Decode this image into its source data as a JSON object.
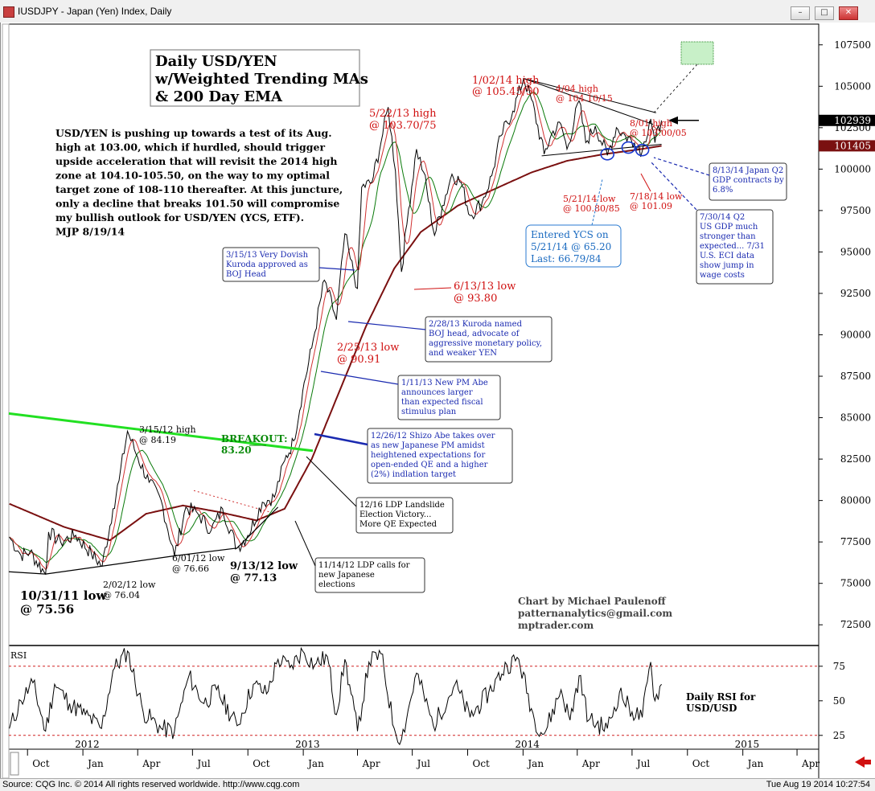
{
  "window": {
    "title": "IUSDJPY - Japan (Yen) Index, Daily",
    "buttons": [
      "minimize",
      "maximize",
      "close"
    ]
  },
  "footer": {
    "source": "Source: CQG Inc. © 2014 All rights reserved worldwide.  http://www.cqg.com",
    "timestamp": "Tue Aug 19 2014 10:27:54"
  },
  "chart_data": [
    {
      "type": "line",
      "ylim": [
        71250,
        108750
      ],
      "y_ticks": [
        "72500",
        "75000",
        "77500",
        "80000",
        "82500",
        "85000",
        "87500",
        "90000",
        "92500",
        "95000",
        "97500",
        "100000",
        "102500",
        "105000",
        "107500"
      ],
      "x_tick_labels": [
        "Oct",
        "Jan",
        "Apr",
        "Jul",
        "Oct",
        "Jan",
        "Apr",
        "Jul",
        "Oct",
        "Jan",
        "Apr",
        "Jul",
        "Oct",
        "Jan",
        "Apr"
      ],
      "x_year_labels": [
        "2012",
        "2013",
        "2014",
        "2015"
      ],
      "price_markers": [
        {
          "label": "102939",
          "value": 102939,
          "color": "#000000"
        },
        {
          "label": "101405",
          "value": 101405,
          "color": "#7a1010"
        }
      ],
      "title_box": [
        "Daily USD/YEN",
        "w/Weighted Trending MAs",
        "& 200 Day EMA"
      ],
      "commentary": [
        "USD/YEN is pushing up towards a test of its Aug.",
        "high at 103.00, which if hurdled, should trigger",
        "upside acceleration that will revisit the 2014 high",
        "zone at 104.10-105.50, on the way to my optimal",
        "target zone of 108-110 thereafter. At this juncture,",
        "only a decline that breaks 101.50 will compromise",
        "my bullish outlook for USD/YEN (YCS, ETF).",
        "MJP 8/19/14"
      ],
      "credit": [
        "Chart by Michael Paulenoff",
        "patternanalytics@gmail.com",
        "mptrader.com"
      ],
      "labels_red": [
        [
          "5/22/13 high",
          "@ 103.70/75"
        ],
        [
          "1/02/14 high",
          "@ 105.45/50"
        ],
        [
          "4/04 high",
          "@ 104.10/15"
        ],
        [
          "8/01 high",
          "@ 103.00/05"
        ],
        [
          "5/21/14 low",
          "@ 100.80/85"
        ],
        [
          "7/18/14 low",
          "@ 101.09"
        ],
        [
          "6/13/13 low",
          "@ 93.80"
        ],
        [
          "2/25/13 low",
          "@ 90.91"
        ]
      ],
      "labels_black": [
        [
          "3/15/12 high",
          "@ 84.19"
        ],
        [
          "2/02/12 low",
          "@ 76.04"
        ],
        [
          "6/01/12 low",
          "@ 76.66"
        ],
        [
          "9/13/12 low",
          "@ 77.13"
        ],
        [
          "10/31/11 low",
          "@ 75.56"
        ]
      ],
      "breakout": [
        "BREAKOUT:",
        "83.20"
      ],
      "notes_blue": [
        [
          "3/15/13 Very Dovish",
          "Kuroda approved as",
          "BOJ Head"
        ],
        [
          "2/28/13 Kuroda named",
          "BOJ head, advocate of",
          "aggressive monetary policy,",
          "and  weaker YEN"
        ],
        [
          "1/11/13 New PM Abe",
          "announces larger",
          "than expected fiscal",
          "stimulus plan"
        ],
        [
          "12/26/12 Shizo Abe takes over",
          "as new Japanese PM amidst",
          "heightened expectations for",
          "open-ended QE and a higher",
          "(2%) indlation target"
        ],
        [
          "8/13/14 Japan Q2",
          "GDP contracts by",
          "6.8%"
        ],
        [
          "7/30/14 Q2",
          "US GDP much",
          "stronger than",
          "expected... 7/31",
          "U.S. ECI data",
          "show jump in",
          "wage costs"
        ]
      ],
      "notes_black": [
        [
          "12/16 LDP Landslide",
          "Election Victory...",
          "More QE Expected"
        ],
        [
          "11/14/12 LDP calls for",
          "new Japanese",
          "elections"
        ]
      ],
      "ycs_box": [
        "Entered YCS on",
        "5/21/14 @ 65.20",
        "Last: 66.79/84"
      ],
      "series": [
        {
          "name": "price",
          "points": [
            [
              "2011-09-01",
              77800
            ],
            [
              "2011-09-20",
              76700
            ],
            [
              "2011-10-05",
              76900
            ],
            [
              "2011-10-31",
              75560
            ],
            [
              "2011-11-05",
              78100
            ],
            [
              "2011-11-25",
              77500
            ],
            [
              "2011-12-20",
              77900
            ],
            [
              "2012-01-15",
              76800
            ],
            [
              "2012-02-02",
              76040
            ],
            [
              "2012-02-20",
              79500
            ],
            [
              "2012-03-01",
              81200
            ],
            [
              "2012-03-15",
              84190
            ],
            [
              "2012-04-01",
              82600
            ],
            [
              "2012-04-20",
              81100
            ],
            [
              "2012-05-10",
              80000
            ],
            [
              "2012-06-01",
              76660
            ],
            [
              "2012-06-20",
              79600
            ],
            [
              "2012-07-10",
              79200
            ],
            [
              "2012-08-01",
              78200
            ],
            [
              "2012-08-20",
              79500
            ],
            [
              "2012-09-13",
              77130
            ],
            [
              "2012-10-01",
              77900
            ],
            [
              "2012-10-25",
              79900
            ],
            [
              "2012-11-14",
              80200
            ],
            [
              "2012-12-01",
              82400
            ],
            [
              "2012-12-16",
              83600
            ],
            [
              "2012-12-31",
              86600
            ],
            [
              "2013-01-15",
              89200
            ],
            [
              "2013-02-05",
              93300
            ],
            [
              "2013-02-25",
              90910
            ],
            [
              "2013-03-11",
              96100
            ],
            [
              "2013-03-20",
              94600
            ],
            [
              "2013-04-01",
              92800
            ],
            [
              "2013-04-08",
              98900
            ],
            [
              "2013-04-25",
              99200
            ],
            [
              "2013-05-10",
              101600
            ],
            [
              "2013-05-22",
              103740
            ],
            [
              "2013-06-03",
              99900
            ],
            [
              "2013-06-13",
              93800
            ],
            [
              "2013-06-25",
              97600
            ],
            [
              "2013-07-08",
              101200
            ],
            [
              "2013-07-20",
              99800
            ],
            [
              "2013-08-07",
              96000
            ],
            [
              "2013-08-20",
              97800
            ],
            [
              "2013-09-05",
              99700
            ],
            [
              "2013-09-20",
              99200
            ],
            [
              "2013-10-05",
              97200
            ],
            [
              "2013-10-25",
              98000
            ],
            [
              "2013-11-10",
              99600
            ],
            [
              "2013-11-25",
              102000
            ],
            [
              "2013-12-15",
              103500
            ],
            [
              "2014-01-02",
              105470
            ],
            [
              "2014-01-15",
              104200
            ],
            [
              "2014-02-05",
              100900
            ],
            [
              "2014-02-20",
              102300
            ],
            [
              "2014-03-05",
              102700
            ],
            [
              "2014-03-15",
              101200
            ],
            [
              "2014-04-04",
              104120
            ],
            [
              "2014-04-15",
              101600
            ],
            [
              "2014-05-01",
              102600
            ],
            [
              "2014-05-21",
              100830
            ],
            [
              "2014-06-05",
              102500
            ],
            [
              "2014-06-20",
              102000
            ],
            [
              "2014-07-05",
              101600
            ],
            [
              "2014-07-18",
              101090
            ],
            [
              "2014-07-30",
              102900
            ],
            [
              "2014-08-01",
              103030
            ],
            [
              "2014-08-08",
              101600
            ],
            [
              "2014-08-19",
              102939
            ]
          ]
        },
        {
          "name": "EMA200",
          "points": [
            [
              "2011-09-01",
              79800
            ],
            [
              "2011-12-01",
              78400
            ],
            [
              "2012-02-15",
              77600
            ],
            [
              "2012-04-15",
              79200
            ],
            [
              "2012-06-15",
              79700
            ],
            [
              "2012-08-15",
              79300
            ],
            [
              "2012-10-15",
              78800
            ],
            [
              "2012-12-01",
              79500
            ],
            [
              "2013-01-15",
              82500
            ],
            [
              "2013-03-01",
              86500
            ],
            [
              "2013-04-15",
              90500
            ],
            [
              "2013-06-01",
              94000
            ],
            [
              "2013-07-15",
              96200
            ],
            [
              "2013-09-15",
              97800
            ],
            [
              "2013-11-15",
              98800
            ],
            [
              "2014-01-15",
              99800
            ],
            [
              "2014-03-15",
              100500
            ],
            [
              "2014-05-15",
              100900
            ],
            [
              "2014-07-15",
              101200
            ],
            [
              "2014-08-19",
              101405
            ]
          ]
        }
      ]
    },
    {
      "type": "line",
      "title": "RSI",
      "ylim": [
        15,
        90
      ],
      "y_ticks": [
        "25",
        "50",
        "75"
      ],
      "dashed_levels": [
        75,
        25
      ],
      "annotation": [
        "Daily RSI for",
        "USD/USD"
      ],
      "series": [
        {
          "name": "RSI",
          "points": [
            [
              "2011-09-01",
              30
            ],
            [
              "2011-09-20",
              50
            ],
            [
              "2011-10-10",
              63
            ],
            [
              "2011-10-31",
              28
            ],
            [
              "2011-11-15",
              62
            ],
            [
              "2011-12-10",
              48
            ],
            [
              "2012-01-05",
              40
            ],
            [
              "2012-02-01",
              30
            ],
            [
              "2012-02-20",
              72
            ],
            [
              "2012-03-15",
              86
            ],
            [
              "2012-04-10",
              42
            ],
            [
              "2012-05-10",
              30
            ],
            [
              "2012-06-01",
              28
            ],
            [
              "2012-06-25",
              68
            ],
            [
              "2012-07-20",
              48
            ],
            [
              "2012-08-10",
              58
            ],
            [
              "2012-09-13",
              32
            ],
            [
              "2012-10-10",
              62
            ],
            [
              "2012-11-01",
              55
            ],
            [
              "2012-11-20",
              80
            ],
            [
              "2012-12-10",
              74
            ],
            [
              "2012-12-31",
              86
            ],
            [
              "2013-01-20",
              76
            ],
            [
              "2013-02-10",
              82
            ],
            [
              "2013-02-25",
              40
            ],
            [
              "2013-03-11",
              80
            ],
            [
              "2013-04-01",
              28
            ],
            [
              "2013-04-20",
              78
            ],
            [
              "2013-05-10",
              84
            ],
            [
              "2013-06-01",
              30
            ],
            [
              "2013-06-13",
              22
            ],
            [
              "2013-07-08",
              70
            ],
            [
              "2013-08-05",
              32
            ],
            [
              "2013-09-10",
              62
            ],
            [
              "2013-10-05",
              38
            ],
            [
              "2013-11-05",
              56
            ],
            [
              "2013-12-05",
              76
            ],
            [
              "2013-12-25",
              80
            ],
            [
              "2014-01-20",
              36
            ],
            [
              "2014-02-05",
              26
            ],
            [
              "2014-03-05",
              58
            ],
            [
              "2014-03-20",
              36
            ],
            [
              "2014-04-04",
              68
            ],
            [
              "2014-04-20",
              36
            ],
            [
              "2014-05-21",
              30
            ],
            [
              "2014-06-10",
              56
            ],
            [
              "2014-07-01",
              42
            ],
            [
              "2014-07-18",
              38
            ],
            [
              "2014-08-01",
              78
            ],
            [
              "2014-08-08",
              50
            ],
            [
              "2014-08-19",
              62
            ]
          ]
        }
      ]
    }
  ]
}
